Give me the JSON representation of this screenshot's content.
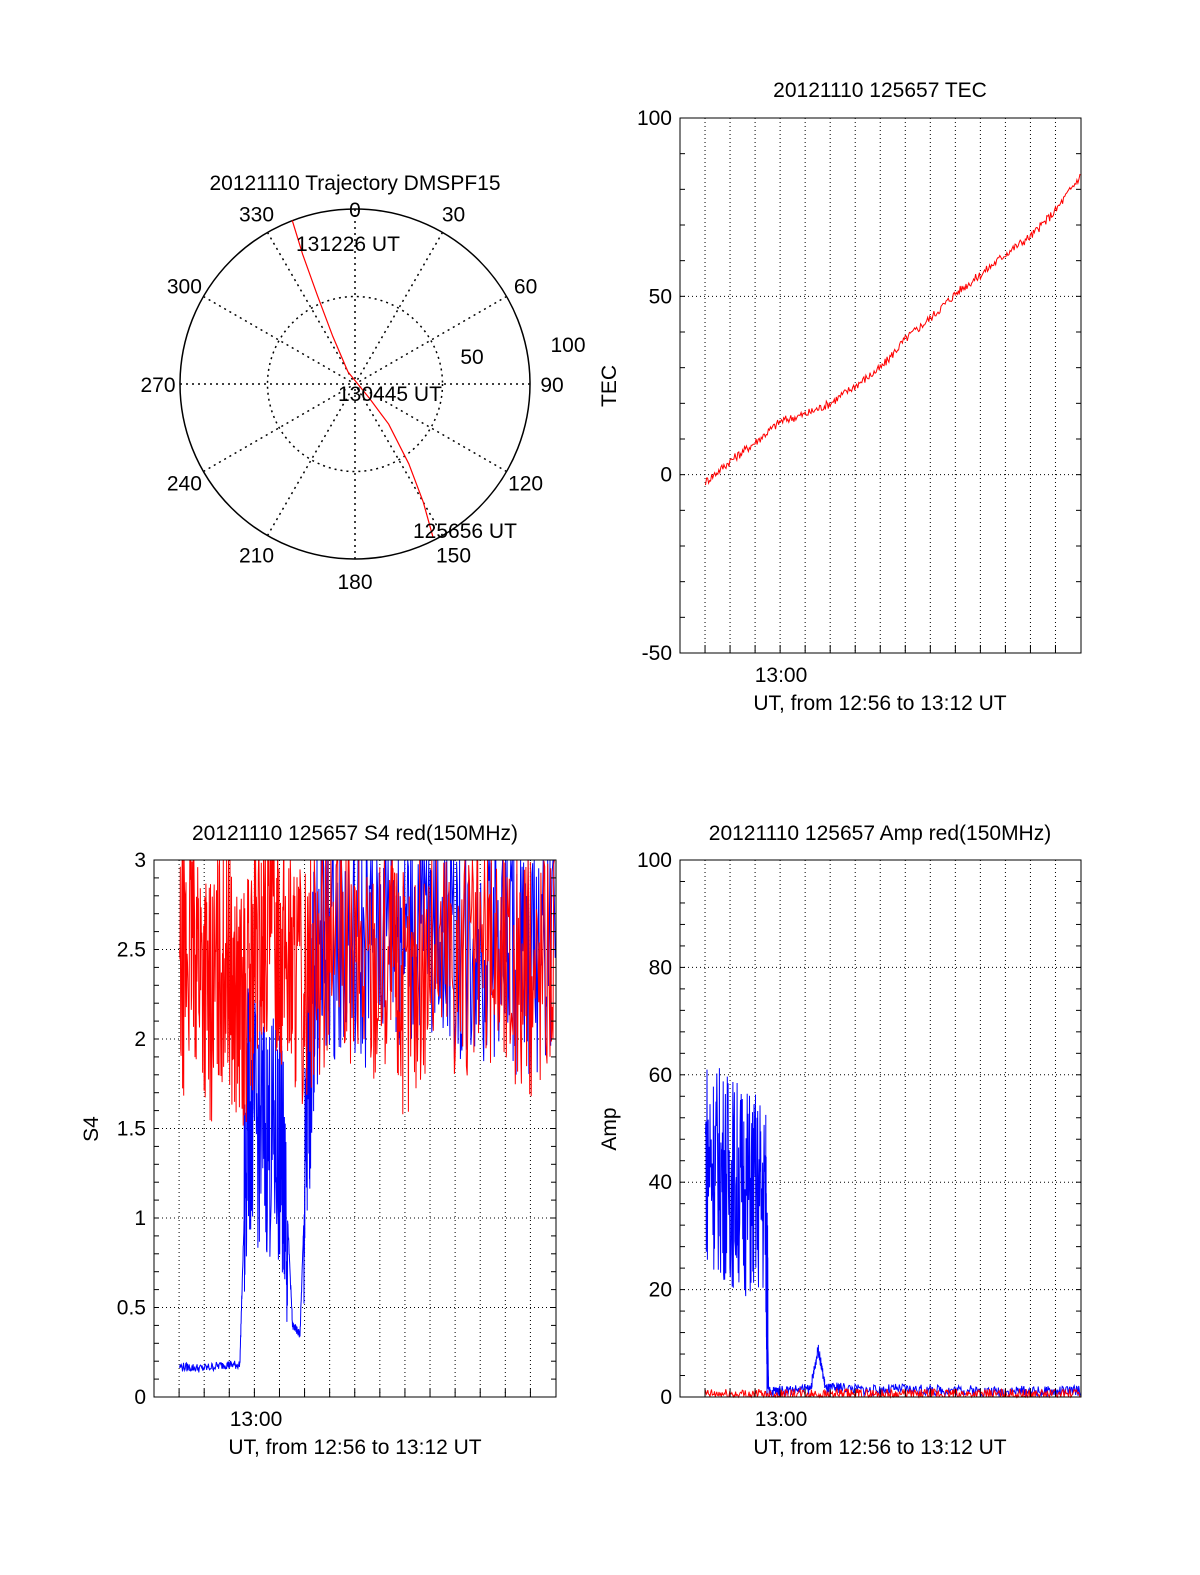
{
  "chart_data": [
    {
      "type": "polar",
      "title": "20121110 Trajectory DMSPF15",
      "azimuth_ticks": [
        "0",
        "30",
        "60",
        "90",
        "120",
        "150",
        "180",
        "210",
        "240",
        "270",
        "300",
        "330"
      ],
      "radial_ticks": [
        "50",
        "100"
      ],
      "radial_max": 100,
      "labels": {
        "start": "125656 UT",
        "mid": "130445 UT",
        "end": "131226 UT"
      },
      "trajectory_color": "#ff0000",
      "trajectory_polar": [
        [
          153,
          98
        ],
        [
          150,
          78
        ],
        [
          146,
          55
        ],
        [
          140,
          30
        ],
        [
          135,
          12
        ],
        [
          330,
          8
        ],
        [
          335,
          30
        ],
        [
          337,
          55
        ],
        [
          338,
          80
        ],
        [
          339,
          100
        ]
      ]
    },
    {
      "type": "line",
      "title": "20121110 125657 TEC",
      "ylabel": "TEC",
      "xlabel": "UT, from 12:56 to 13:12 UT",
      "ylim": [
        -50,
        100
      ],
      "yticks": [
        "100",
        "50",
        "0",
        "-50"
      ],
      "xlim": [
        12.933,
        13.2
      ],
      "xtick_label": "13:00",
      "grid": true,
      "series": [
        {
          "color": "#ff0000",
          "x": [
            12.95,
            12.967,
            12.983,
            13.0,
            13.017,
            13.033,
            13.05,
            13.067,
            13.083,
            13.1,
            13.117,
            13.133,
            13.15,
            13.167,
            13.183,
            13.2
          ],
          "values": [
            -2,
            4,
            9,
            15,
            17,
            20,
            25,
            30,
            38,
            44,
            51,
            56,
            62,
            67,
            74,
            84
          ]
        }
      ]
    },
    {
      "type": "line",
      "title": "20121110 125657 S4 red(150MHz)",
      "ylabel": "S4",
      "xlabel": "UT, from 12:56 to 13:12 UT",
      "ylim": [
        0,
        3
      ],
      "yticks": [
        "3",
        "2.5",
        "2",
        "1.5",
        "1",
        "0.5",
        "0"
      ],
      "xlim": [
        12.933,
        13.2
      ],
      "xtick_label": "13:00",
      "grid": true,
      "series": [
        {
          "color": "#0000ff",
          "x": [
            12.95,
            12.965,
            12.98,
            12.99,
            12.995,
            13.005,
            13.015,
            13.02,
            13.025,
            13.03,
            13.035,
            13.04,
            13.05,
            13.07,
            13.09,
            13.1,
            13.12,
            13.14,
            13.16,
            13.18,
            13.2
          ],
          "values": [
            0.17,
            0.16,
            0.18,
            0.18,
            1.6,
            1.5,
            1.4,
            1.3,
            0.4,
            0.35,
            1.6,
            2.4,
            2.6,
            2.5,
            2.7,
            2.6,
            2.7,
            2.5,
            2.6,
            2.4,
            2.7
          ]
        },
        {
          "color": "#ff0000",
          "x": [
            12.95,
            12.96,
            12.97,
            12.98,
            12.99,
            13.0,
            13.01,
            13.02,
            13.03,
            13.05,
            13.07,
            13.09,
            13.1,
            13.12,
            13.14,
            13.16,
            13.18,
            13.2
          ],
          "values": [
            2.3,
            2.6,
            2.2,
            2.5,
            2.1,
            2.4,
            2.7,
            2.5,
            2.3,
            2.6,
            2.4,
            2.5,
            2.2,
            2.6,
            2.4,
            2.5,
            2.3,
            2.6
          ]
        }
      ]
    },
    {
      "type": "line",
      "title": "20121110 125657 Amp red(150MHz)",
      "ylabel": "Amp",
      "xlabel": "UT, from 12:56 to 13:12 UT",
      "ylim": [
        0,
        100
      ],
      "yticks": [
        "100",
        "80",
        "60",
        "40",
        "20",
        "0"
      ],
      "xlim": [
        12.933,
        13.2
      ],
      "xtick_label": "13:00",
      "grid": true,
      "series": [
        {
          "color": "#0000ff",
          "x": [
            12.95,
            12.96,
            12.97,
            12.98,
            12.99,
            12.992,
            13.0,
            13.02,
            13.025,
            13.03,
            13.04,
            13.06,
            13.08,
            13.1,
            13.12,
            13.14,
            13.16,
            13.18,
            13.2
          ],
          "values": [
            45,
            42,
            40,
            38,
            37,
            1,
            1.2,
            1.5,
            9,
            1.5,
            1.8,
            1.2,
            1.5,
            1.2,
            1.3,
            1,
            1.1,
            1,
            1.2
          ]
        },
        {
          "color": "#ff0000",
          "x": [
            12.95,
            12.97,
            12.99,
            13.01,
            13.03,
            13.05,
            13.07,
            13.09,
            13.11,
            13.13,
            13.15,
            13.17,
            13.2
          ],
          "values": [
            0.5,
            0.5,
            0.5,
            0.5,
            0.5,
            0.5,
            0.5,
            0.5,
            0.5,
            0.5,
            0.5,
            0.5,
            0.5
          ]
        }
      ]
    }
  ]
}
